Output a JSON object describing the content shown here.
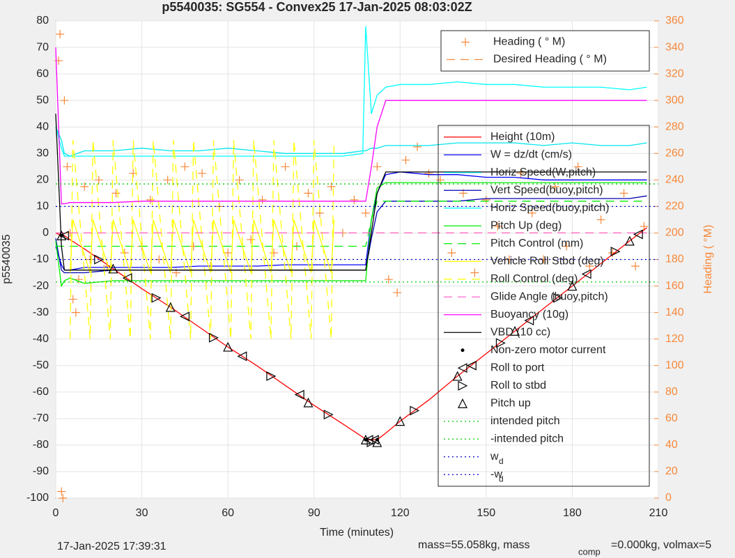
{
  "chart_data": {
    "type": "line",
    "title": "p5540035: SG554 - Convex25 17-Jan-2025 08:03:02Z",
    "xlabel": "Time (minutes)",
    "ylabel": "p5540035",
    "y2label": "Heading (  °M)",
    "footer": {
      "date": "17-Jan-2025 17:39:31",
      "mass": "mass=55.058kg, mass",
      "mass_sub": "comp",
      "rest": "=0.000kg, volmax=5"
    },
    "xlim": [
      0,
      210
    ],
    "xticks": [
      0,
      30,
      60,
      90,
      120,
      150,
      180,
      210
    ],
    "ylim": [
      -100,
      80
    ],
    "yticks": [
      80,
      70,
      60,
      50,
      40,
      30,
      20,
      10,
      0,
      -10,
      -20,
      -30,
      -40,
      -50,
      -60,
      -70,
      -80,
      -90,
      -100
    ],
    "y2lim": [
      0,
      360
    ],
    "y2ticks": [
      0,
      20,
      40,
      60,
      80,
      100,
      120,
      140,
      160,
      180,
      200,
      220,
      240,
      260,
      280,
      300,
      320,
      340,
      360
    ],
    "grid": true,
    "x": [
      0,
      2,
      3,
      5,
      10,
      20,
      30,
      40,
      50,
      60,
      70,
      80,
      90,
      100,
      107,
      108,
      110,
      112,
      115,
      120,
      130,
      140,
      150,
      160,
      170,
      180,
      190,
      200,
      206
    ],
    "series": [
      {
        "name": "Heading (  ° M)",
        "color": "#f7883a",
        "style": "plus",
        "axis": "y2",
        "x": [
          1,
          1.5,
          2,
          2.5,
          3,
          4,
          5,
          6,
          7,
          8,
          10,
          12,
          15,
          18,
          21,
          24,
          27,
          30,
          33,
          36,
          39,
          42,
          45,
          48,
          51,
          54,
          57,
          60,
          64,
          68,
          72,
          76,
          80,
          84,
          88,
          92,
          96,
          100,
          104,
          108,
          112,
          116,
          119,
          122,
          126,
          130,
          134,
          138,
          142,
          146,
          150,
          154,
          158,
          162,
          166,
          170,
          174,
          178,
          182,
          186,
          190,
          194,
          198,
          202,
          205
        ],
        "values": [
          330,
          350,
          5,
          0,
          300,
          250,
          200,
          150,
          140,
          165,
          235,
          180,
          240,
          175,
          230,
          185,
          245,
          190,
          225,
          180,
          240,
          170,
          250,
          190,
          245,
          175,
          220,
          185,
          240,
          195,
          225,
          185,
          250,
          190,
          230,
          215,
          235,
          200,
          225,
          215,
          250,
          165,
          155,
          255,
          265,
          245,
          240,
          185,
          230,
          170,
          225,
          205,
          180,
          245,
          215,
          180,
          235,
          190,
          250,
          175,
          210,
          185,
          230,
          175,
          205
        ]
      },
      {
        "name": "Desired Heading (    ° M)",
        "color": "#f7883a",
        "style": "dashed",
        "axis": "y2",
        "values": [
          200,
          200,
          200,
          200,
          200,
          200,
          200,
          200,
          200,
          200,
          200,
          200,
          200,
          200,
          200,
          200,
          200,
          200,
          200,
          200,
          200,
          200,
          200,
          200,
          200,
          200,
          200,
          200,
          200
        ]
      },
      {
        "name": "Height (10m)",
        "color": "#ff0000",
        "style": "solid",
        "values": [
          0,
          -1,
          -1,
          -2.5,
          -6,
          -13.5,
          -21,
          -28,
          -35.5,
          -43,
          -50,
          -57.5,
          -65,
          -72,
          -77,
          -78,
          -78,
          -78,
          -75.5,
          -71,
          -63,
          -54,
          -45.5,
          -37,
          -28.5,
          -20,
          -11.5,
          -3,
          2
        ]
      },
      {
        "name": "W = dz/dt (cm/s)",
        "color": "#0000ff",
        "style": "solid",
        "values": [
          -5,
          -12,
          -14,
          -14,
          -13,
          -13,
          -13,
          -13,
          -12.5,
          -12.5,
          -12.5,
          -12,
          -12,
          -12,
          -12,
          -12,
          5,
          15,
          22,
          23,
          22,
          22,
          21,
          21,
          20,
          20,
          20,
          20,
          20
        ]
      },
      {
        "name": "Horiz Speed(W,pitch)",
        "color": "#00e5ee",
        "style": "solid",
        "values": [
          40,
          35,
          30,
          29,
          31,
          31,
          32,
          31,
          31,
          32,
          31,
          30,
          30,
          30,
          31,
          31,
          32,
          32,
          33,
          33,
          33,
          34,
          34,
          34,
          33,
          34,
          33,
          33,
          34
        ]
      },
      {
        "name": "Vert Speed(buoy,pitch)",
        "color": "#0000b0",
        "style": "solid",
        "values": [
          -2,
          -14,
          -15,
          -15,
          -15,
          -14,
          -14,
          -14,
          -14,
          -14,
          -14,
          -14,
          -14,
          -14,
          -14,
          -14,
          -2,
          8,
          12,
          12,
          12,
          12,
          13,
          13,
          13,
          13,
          13,
          13,
          14
        ]
      },
      {
        "name": "Horiz Speed(buoy,pitch)",
        "color": "#00ffff",
        "style": "solid",
        "values": [
          40,
          32,
          29,
          29,
          29,
          29,
          29,
          29,
          29,
          29,
          29,
          29,
          29,
          29,
          30,
          78,
          45,
          52,
          55,
          56,
          56,
          57,
          56,
          56,
          55,
          55,
          55,
          54,
          55
        ]
      },
      {
        "name": "Pitch Up (deg)",
        "color": "#00ee00",
        "style": "solid",
        "values": [
          -3,
          -20,
          -18,
          -17,
          -19,
          -18,
          -18,
          -18,
          -18,
          -18,
          -18,
          -18,
          -18,
          -18,
          -18,
          -18,
          5,
          17,
          19,
          19,
          19,
          19,
          19,
          19,
          19,
          19,
          19,
          19,
          19
        ]
      },
      {
        "name": "Pitch Control (mm)",
        "color": "#00ee00",
        "style": "dashed",
        "values": [
          -5,
          -5,
          -5,
          -5,
          -5,
          -5,
          -5,
          -5,
          -5,
          -5,
          -5,
          -5,
          -5,
          -5,
          -5,
          -5,
          5,
          12,
          12,
          12,
          12,
          12,
          12,
          12,
          12,
          12,
          12,
          12,
          12
        ]
      },
      {
        "name": "Vehicle Roll Stbd (deg)",
        "color": "#ffff00",
        "style": "solid",
        "x": [
          5,
          6,
          12,
          13,
          19,
          20,
          26,
          27,
          33,
          34,
          40,
          41,
          47,
          48,
          54,
          55,
          61,
          62,
          68,
          69,
          75,
          76,
          82,
          83,
          89,
          90,
          96,
          97
        ],
        "values": [
          -15,
          5,
          -15,
          5,
          -15,
          5,
          -15,
          5,
          -15,
          5,
          -15,
          5,
          -15,
          5,
          -15,
          5,
          -15,
          5,
          -15,
          5,
          -15,
          5,
          -15,
          5,
          -15,
          5,
          -15,
          5
        ]
      },
      {
        "name": "Roll Control (deg)",
        "color": "#ffff00",
        "style": "dashed",
        "x": [
          5,
          6,
          12,
          13,
          19,
          20,
          26,
          27,
          33,
          34,
          40,
          41,
          47,
          48,
          54,
          55,
          61,
          62,
          68,
          69,
          75,
          76,
          82,
          83,
          89,
          90,
          96,
          97
        ],
        "values": [
          -40,
          35,
          -40,
          35,
          -40,
          35,
          -40,
          35,
          -40,
          35,
          -40,
          35,
          -40,
          35,
          -40,
          35,
          -40,
          35,
          -40,
          35,
          -40,
          35,
          -40,
          35,
          -40,
          35,
          -40,
          35
        ]
      },
      {
        "name": "Glide Angle (buoy,pitch)",
        "color": "#ff66cc",
        "style": "dashed",
        "values": [
          0,
          0,
          0,
          0,
          0,
          0,
          0,
          0,
          0,
          0,
          0,
          0,
          0,
          0,
          0,
          0,
          0,
          0,
          0,
          0,
          0,
          0,
          0,
          0,
          0,
          0,
          0,
          0,
          0
        ]
      },
      {
        "name": "Buoyancy (10g)",
        "color": "#ff00ff",
        "style": "solid",
        "values": [
          70,
          11,
          11,
          11.5,
          11.5,
          11.5,
          12,
          12,
          12,
          12,
          12,
          12,
          12,
          12,
          12,
          12,
          25,
          40,
          50,
          50,
          50,
          50,
          50,
          50,
          50,
          50,
          50,
          50,
          50
        ]
      },
      {
        "name": "VBD (10 cc)",
        "color": "#000000",
        "style": "solid",
        "values": [
          45,
          -5,
          -14,
          -14,
          -14,
          -14,
          -14,
          -14,
          -14,
          -14,
          -14,
          -14,
          -14,
          -14,
          -14,
          -14,
          0,
          15,
          23,
          23,
          23,
          23,
          23,
          23,
          23,
          23,
          23,
          23,
          23
        ]
      },
      {
        "name": "Non-zero motor current",
        "color": "#000000",
        "style": "dot",
        "x": [
          2,
          108,
          112
        ],
        "values": [
          -1,
          -78,
          -78
        ]
      },
      {
        "name": "Roll to port",
        "color": "#000000",
        "style": "tri-left",
        "x": [
          3,
          25,
          45,
          65,
          85,
          109,
          111,
          145,
          165,
          185,
          203
        ],
        "values": [
          -1,
          -17,
          -31.5,
          -46.5,
          -61,
          -78,
          -78,
          -50,
          -33,
          -15.5,
          -0.5
        ]
      },
      {
        "name": "Roll to stbd",
        "color": "#000000",
        "style": "tri-right",
        "x": [
          15,
          35,
          55,
          75,
          95,
          110,
          125,
          155,
          175,
          195
        ],
        "values": [
          -10,
          -24.5,
          -39.5,
          -54,
          -68.5,
          -79,
          -67,
          -41.5,
          -24.5,
          -7
        ]
      },
      {
        "name": "Pitch up",
        "color": "#000000",
        "style": "tri-up",
        "x": [
          2,
          20,
          40,
          60,
          88,
          108,
          112,
          120,
          140,
          160,
          180,
          200
        ],
        "values": [
          -1,
          -13.5,
          -28,
          -43,
          -64,
          -78,
          -79,
          -71,
          -54,
          -37,
          -20,
          -3
        ]
      },
      {
        "name": "intended pitch",
        "color": "#00cc00",
        "style": "hline",
        "value": 18.5
      },
      {
        "name": "-intended pitch",
        "color": "#00cc00",
        "style": "hline",
        "value": -18.5
      },
      {
        "name": "w",
        "subscript": "d",
        "color": "#0000cc",
        "style": "hline",
        "value": 10
      },
      {
        "name": "-w",
        "subscript": "d",
        "color": "#0000cc",
        "style": "hline",
        "value": -10
      }
    ]
  }
}
